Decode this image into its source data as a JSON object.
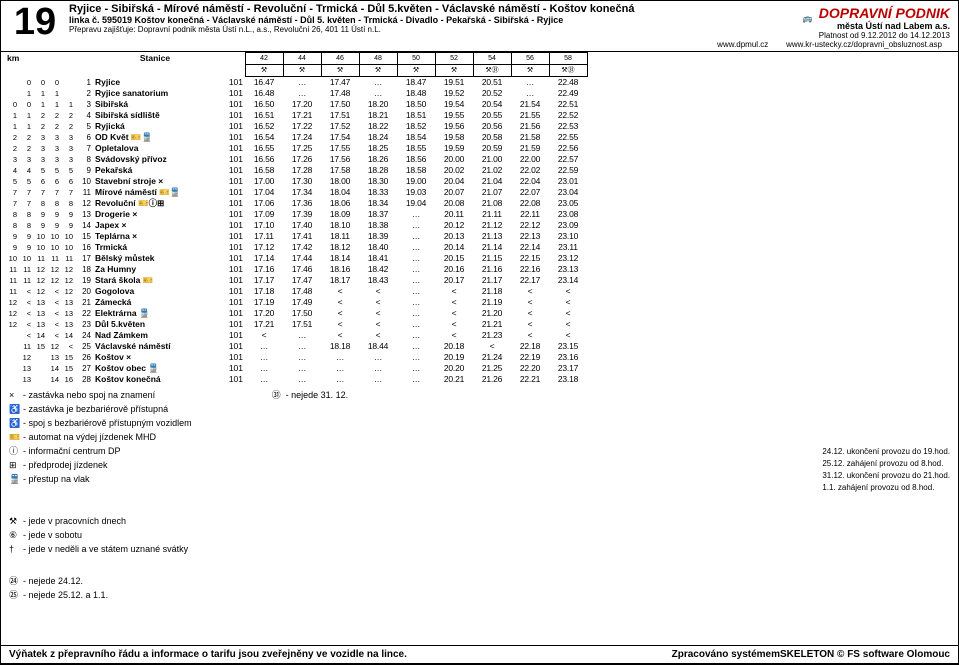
{
  "header": {
    "line_number": "19",
    "route": "Ryjice - Sibiřská - Mírové náměstí - Revoluční - Trmická - Důl 5.květen - Václavské náměstí - Koštov konečná",
    "direction": "linka č. 595019 Koštov konečná - Václavské náměstí - Důl 5. květen - Trmická - Divadlo - Pekařská - Sibiřská - Ryjice",
    "carrier": "Přepravu zajišťuje: Dopravní podnik města Ústí n.L., a.s., Revoluční 26, 401 11 Ústí n.L.",
    "brand": "DOPRAVNÍ PODNIK",
    "brand_sub": "města Ústí nad Labem a.s.",
    "validity": "Platnost od 9.12.2012 do 14.12.2013",
    "url1": "www.dpmul.cz",
    "url2": "www.kr-ustecky.cz/dopravni_obsluznost.asp"
  },
  "table": {
    "km_label": "km",
    "stanice_label": "Stanice",
    "dep_headers": [
      "42",
      "44",
      "46",
      "48",
      "50",
      "52",
      "54",
      "56",
      "58"
    ],
    "dep_sub": [
      "⚒",
      "⚒",
      "⚒",
      "⚒",
      "⚒",
      "⚒",
      "⚒㉛",
      "⚒",
      "⚒㉛"
    ],
    "rows": [
      {
        "km": [
          "",
          "0",
          "0",
          "0"
        ],
        "seq": "1",
        "stop": "Ryjice",
        "zone": "101",
        "t": [
          "16.47",
          "…",
          "17.47",
          "…",
          "18.47",
          "19.51",
          "20.51",
          "…",
          "22.48"
        ]
      },
      {
        "km": [
          "",
          "1",
          "1",
          "1"
        ],
        "seq": "2",
        "stop": "Ryjice sanatorium",
        "zone": "101",
        "t": [
          "16.48",
          "…",
          "17.48",
          "…",
          "18.48",
          "19.52",
          "20.52",
          "…",
          "22.49"
        ]
      },
      {
        "km": [
          "0",
          "0",
          "1",
          "1",
          "1"
        ],
        "seq": "3",
        "stop": "Sibiřská",
        "zone": "101",
        "t": [
          "16.50",
          "17.20",
          "17.50",
          "18.20",
          "18.50",
          "19.54",
          "20.54",
          "21.54",
          "22.51"
        ]
      },
      {
        "km": [
          "1",
          "1",
          "2",
          "2",
          "2"
        ],
        "seq": "4",
        "stop": "Sibiřská sídliště",
        "zone": "101",
        "t": [
          "16.51",
          "17.21",
          "17.51",
          "18.21",
          "18.51",
          "19.55",
          "20.55",
          "21.55",
          "22.52"
        ]
      },
      {
        "km": [
          "1",
          "1",
          "2",
          "2",
          "2"
        ],
        "seq": "5",
        "stop": "Ryjická",
        "zone": "101",
        "t": [
          "16.52",
          "17.22",
          "17.52",
          "18.22",
          "18.52",
          "19.56",
          "20.56",
          "21.56",
          "22.53"
        ]
      },
      {
        "km": [
          "2",
          "2",
          "3",
          "3",
          "3"
        ],
        "seq": "6",
        "stop": "OD Květ 🎫🚆",
        "zone": "101",
        "t": [
          "16.54",
          "17.24",
          "17.54",
          "18.24",
          "18.54",
          "19.58",
          "20.58",
          "21.58",
          "22.55"
        ]
      },
      {
        "km": [
          "2",
          "2",
          "3",
          "3",
          "3"
        ],
        "seq": "7",
        "stop": "Opletalova",
        "zone": "101",
        "t": [
          "16.55",
          "17.25",
          "17.55",
          "18.25",
          "18.55",
          "19.59",
          "20.59",
          "21.59",
          "22.56"
        ]
      },
      {
        "km": [
          "3",
          "3",
          "3",
          "3",
          "3"
        ],
        "seq": "8",
        "stop": "Svádovský přívoz",
        "zone": "101",
        "t": [
          "16.56",
          "17.26",
          "17.56",
          "18.26",
          "18.56",
          "20.00",
          "21.00",
          "22.00",
          "22.57"
        ]
      },
      {
        "km": [
          "4",
          "4",
          "5",
          "5",
          "5"
        ],
        "seq": "9",
        "stop": "Pekařská",
        "zone": "101",
        "t": [
          "16.58",
          "17.28",
          "17.58",
          "18.28",
          "18.58",
          "20.02",
          "21.02",
          "22.02",
          "22.59"
        ]
      },
      {
        "km": [
          "5",
          "5",
          "6",
          "6",
          "6"
        ],
        "seq": "10",
        "stop": "Stavební stroje ×",
        "zone": "101",
        "t": [
          "17.00",
          "17.30",
          "18.00",
          "18.30",
          "19.00",
          "20.04",
          "21.04",
          "22.04",
          "23.01"
        ]
      },
      {
        "km": [
          "7",
          "7",
          "7",
          "7",
          "7"
        ],
        "seq": "11",
        "stop": "Mírové náměstí 🎫🚆",
        "zone": "101",
        "t": [
          "17.04",
          "17.34",
          "18.04",
          "18.33",
          "19.03",
          "20.07",
          "21.07",
          "22.07",
          "23.04"
        ]
      },
      {
        "km": [
          "7",
          "7",
          "8",
          "8",
          "8"
        ],
        "seq": "12",
        "stop": "Revoluční 🎫ⓘ⊞",
        "zone": "101",
        "t": [
          "17.06",
          "17.36",
          "18.06",
          "18.34",
          "19.04",
          "20.08",
          "21.08",
          "22.08",
          "23.05"
        ]
      },
      {
        "km": [
          "8",
          "8",
          "9",
          "9",
          "9"
        ],
        "seq": "13",
        "stop": "Drogerie ×",
        "zone": "101",
        "t": [
          "17.09",
          "17.39",
          "18.09",
          "18.37",
          "…",
          "20.11",
          "21.11",
          "22.11",
          "23.08"
        ]
      },
      {
        "km": [
          "8",
          "8",
          "9",
          "9",
          "9"
        ],
        "seq": "14",
        "stop": "Japex ×",
        "zone": "101",
        "t": [
          "17.10",
          "17.40",
          "18.10",
          "18.38",
          "…",
          "20.12",
          "21.12",
          "22.12",
          "23.09"
        ]
      },
      {
        "km": [
          "9",
          "9",
          "10",
          "10",
          "10"
        ],
        "seq": "15",
        "stop": "Teplárna ×",
        "zone": "101",
        "t": [
          "17.11",
          "17.41",
          "18.11",
          "18.39",
          "…",
          "20.13",
          "21.13",
          "22.13",
          "23.10"
        ]
      },
      {
        "km": [
          "9",
          "9",
          "10",
          "10",
          "10"
        ],
        "seq": "16",
        "stop": "Trmická",
        "zone": "101",
        "t": [
          "17.12",
          "17.42",
          "18.12",
          "18.40",
          "…",
          "20.14",
          "21.14",
          "22.14",
          "23.11"
        ]
      },
      {
        "km": [
          "10",
          "10",
          "11",
          "11",
          "11"
        ],
        "seq": "17",
        "stop": "Bělský můstek",
        "zone": "101",
        "t": [
          "17.14",
          "17.44",
          "18.14",
          "18.41",
          "…",
          "20.15",
          "21.15",
          "22.15",
          "23.12"
        ]
      },
      {
        "km": [
          "11",
          "11",
          "12",
          "12",
          "12"
        ],
        "seq": "18",
        "stop": "Za Humny",
        "zone": "101",
        "t": [
          "17.16",
          "17.46",
          "18.16",
          "18.42",
          "…",
          "20.16",
          "21.16",
          "22.16",
          "23.13"
        ]
      },
      {
        "km": [
          "11",
          "11",
          "12",
          "12",
          "12"
        ],
        "seq": "19",
        "stop": "Stará škola 🎫",
        "zone": "101",
        "t": [
          "17.17",
          "17.47",
          "18.17",
          "18.43",
          "…",
          "20.17",
          "21.17",
          "22.17",
          "23.14"
        ]
      },
      {
        "km": [
          "11",
          "<",
          "12",
          "<",
          "12"
        ],
        "seq": "20",
        "stop": "Gogolova",
        "zone": "101",
        "t": [
          "17.18",
          "17.48",
          "<",
          "<",
          "…",
          "<",
          "21.18",
          "<",
          "<"
        ]
      },
      {
        "km": [
          "12",
          "<",
          "13",
          "<",
          "13"
        ],
        "seq": "21",
        "stop": "Zámecká",
        "zone": "101",
        "t": [
          "17.19",
          "17.49",
          "<",
          "<",
          "…",
          "<",
          "21.19",
          "<",
          "<"
        ]
      },
      {
        "km": [
          "12",
          "<",
          "13",
          "<",
          "13"
        ],
        "seq": "22",
        "stop": "Elektrárna 🚆",
        "zone": "101",
        "t": [
          "17.20",
          "17.50",
          "<",
          "<",
          "…",
          "<",
          "21.20",
          "<",
          "<"
        ]
      },
      {
        "km": [
          "12",
          "<",
          "13",
          "<",
          "13"
        ],
        "seq": "23",
        "stop": "Důl 5.květen",
        "zone": "101",
        "t": [
          "17.21",
          "17.51",
          "<",
          "<",
          "…",
          "<",
          "21.21",
          "<",
          "<"
        ]
      },
      {
        "km": [
          "",
          "<",
          "14",
          "<",
          "14"
        ],
        "seq": "24",
        "stop": "Nad Zámkem",
        "zone": "101",
        "t": [
          "<",
          "…",
          "<",
          "<",
          "…",
          "<",
          "21.23",
          "<",
          "<"
        ]
      },
      {
        "km": [
          "",
          "11",
          "15",
          "12",
          "<"
        ],
        "seq": "25",
        "stop": "Václavské náměstí",
        "zone": "101",
        "t": [
          "…",
          "…",
          "18.18",
          "18.44",
          "…",
          "20.18",
          "<",
          "22.18",
          "23.15"
        ]
      },
      {
        "km": [
          "",
          "12",
          "",
          "13",
          "15"
        ],
        "seq": "26",
        "stop": "Koštov ×",
        "zone": "101",
        "t": [
          "…",
          "…",
          "…",
          "…",
          "…",
          "20.19",
          "21.24",
          "22.19",
          "23.16"
        ]
      },
      {
        "km": [
          "",
          "13",
          "",
          "14",
          "15"
        ],
        "seq": "27",
        "stop": "Koštov obec 🚆",
        "zone": "101",
        "t": [
          "…",
          "…",
          "…",
          "…",
          "…",
          "20.20",
          "21.25",
          "22.20",
          "23.17"
        ]
      },
      {
        "km": [
          "",
          "13",
          "",
          "14",
          "16"
        ],
        "seq": "28",
        "stop": "Koštov konečná",
        "zone": "101",
        "t": [
          "…",
          "…",
          "…",
          "…",
          "…",
          "20.21",
          "21.26",
          "22.21",
          "23.18"
        ]
      }
    ]
  },
  "legend_left": [
    {
      "sym": "×",
      "txt": "- zastávka nebo spoj na znamení"
    },
    {
      "sym": "♿",
      "txt": "- zastávka je bezbariérově přístupná"
    },
    {
      "sym": "♿",
      "txt": "- spoj s bezbariérově přístupným vozidlem"
    },
    {
      "sym": "🎫",
      "txt": "- automat na výdej jízdenek MHD"
    },
    {
      "sym": "ⓘ",
      "txt": "- informační centrum DP"
    },
    {
      "sym": "⊞",
      "txt": "- předprodej jízdenek"
    },
    {
      "sym": "🚆",
      "txt": "- přestup na vlak"
    }
  ],
  "legend_mid": [
    {
      "sym": "㉛",
      "txt": "- nejede 31. 12."
    }
  ],
  "legend_days": [
    {
      "sym": "⚒",
      "txt": "- jede v pracovních dnech"
    },
    {
      "sym": "⑥",
      "txt": "- jede v sobotu"
    },
    {
      "sym": "†",
      "txt": "- jede v neděli a ve státem uznané svátky"
    }
  ],
  "legend_excl": [
    {
      "sym": "㉔",
      "txt": "- nejede 24.12."
    },
    {
      "sym": "㉕",
      "txt": "- nejede 25.12. a 1.1."
    }
  ],
  "right_notes": [
    "24.12. ukončení provozu do 19.hod.",
    "25.12. zahájení provozu od 8.hod.",
    "31.12. ukončení provozu do 21.hod.",
    "1.1. zahájení provozu od 8.hod."
  ],
  "footer": {
    "left": "Výňatek z přepravního řádu a informace o tarifu jsou zveřejněny ve vozidle na lince.",
    "right": "Zpracováno systémemSKELETON © FS software Olomouc"
  }
}
